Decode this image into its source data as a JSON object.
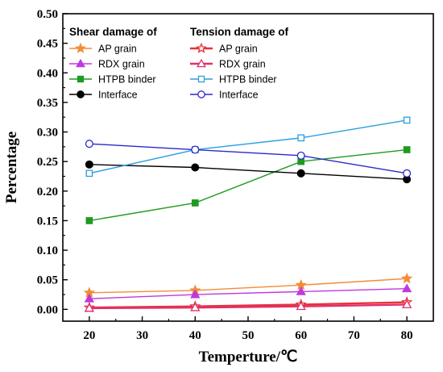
{
  "chart_data": {
    "type": "line",
    "title": "",
    "xlabel": "Temperture/℃",
    "ylabel": "Percentage",
    "xlim": [
      15,
      85
    ],
    "ylim": [
      -0.02,
      0.5
    ],
    "x_ticks": [
      20,
      30,
      40,
      50,
      60,
      70,
      80
    ],
    "y_ticks": [
      0.0,
      0.05,
      0.1,
      0.15,
      0.2,
      0.25,
      0.3,
      0.35,
      0.4,
      0.45,
      0.5
    ],
    "grid": false,
    "legend_placement": "top-left",
    "legend_groups": [
      "Shear damage of",
      "Tension damage of"
    ],
    "series": [
      {
        "name": "AP grain",
        "group": "Shear damage of",
        "color": "#F28C38",
        "marker": "star",
        "filled": true,
        "x": [
          20,
          40,
          60,
          80
        ],
        "y": [
          0.028,
          0.032,
          0.041,
          0.052
        ]
      },
      {
        "name": "RDX grain",
        "group": "Shear damage of",
        "color": "#C038E0",
        "marker": "triangle",
        "filled": true,
        "x": [
          20,
          40,
          60,
          80
        ],
        "y": [
          0.018,
          0.025,
          0.03,
          0.035
        ]
      },
      {
        "name": "HTPB binder",
        "group": "Shear damage of",
        "color": "#1E9A1E",
        "marker": "square",
        "filled": true,
        "x": [
          20,
          40,
          60,
          80
        ],
        "y": [
          0.15,
          0.18,
          0.25,
          0.27
        ]
      },
      {
        "name": "Interface",
        "group": "Shear damage of",
        "color": "#000000",
        "marker": "circle",
        "filled": true,
        "x": [
          20,
          40,
          60,
          80
        ],
        "y": [
          0.245,
          0.24,
          0.23,
          0.22
        ]
      },
      {
        "name": "AP grain",
        "group": "Tension damage of",
        "color": "#E8303A",
        "marker": "star",
        "filled": false,
        "x": [
          20,
          40,
          60,
          80
        ],
        "y": [
          0.003,
          0.005,
          0.008,
          0.012
        ]
      },
      {
        "name": "RDX grain",
        "group": "Tension damage of",
        "color": "#E0306A",
        "marker": "triangle",
        "filled": false,
        "x": [
          20,
          40,
          60,
          80
        ],
        "y": [
          0.002,
          0.003,
          0.005,
          0.008
        ]
      },
      {
        "name": "HTPB binder",
        "group": "Tension damage of",
        "color": "#2A9FE0",
        "marker": "square",
        "filled": false,
        "x": [
          20,
          40,
          60,
          80
        ],
        "y": [
          0.23,
          0.27,
          0.29,
          0.32
        ]
      },
      {
        "name": "Interface",
        "group": "Tension damage of",
        "color": "#2A2ACC",
        "marker": "circle",
        "filled": false,
        "x": [
          20,
          40,
          60,
          80
        ],
        "y": [
          0.28,
          0.27,
          0.26,
          0.23
        ]
      }
    ]
  }
}
